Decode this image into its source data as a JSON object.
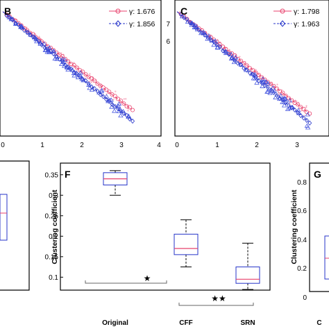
{
  "chart_data": [
    {
      "panel": "B",
      "type": "scatter",
      "letter": "B",
      "xlim": [
        0,
        4
      ],
      "ylim": [
        0,
        7.5
      ],
      "xticks": [
        "0",
        "1",
        "2",
        "3",
        "4"
      ],
      "legend_position": "top-right",
      "series": [
        {
          "name": "γ: 1.676",
          "color": "#e8416c",
          "marker": "circle",
          "fit_start": [
            0,
            7.0
          ],
          "fit_end": [
            3.3,
            1.5
          ]
        },
        {
          "name": "γ: 1.856",
          "color": "#2433c9",
          "marker": "diamond",
          "fit_start": [
            0,
            7.0
          ],
          "fit_end": [
            3.3,
            0.9
          ]
        }
      ]
    },
    {
      "panel": "C",
      "type": "scatter",
      "letter": "C",
      "xlim": [
        0,
        4
      ],
      "ylim": [
        0,
        7.5
      ],
      "yticks": [
        "6",
        "7"
      ],
      "xticks": [
        "0",
        "1",
        "2",
        "3"
      ],
      "legend_position": "top-right",
      "series": [
        {
          "name": "γ: 1.798",
          "color": "#e8416c",
          "marker": "circle",
          "fit_start": [
            0,
            7.0
          ],
          "fit_end": [
            3.3,
            1.3
          ]
        },
        {
          "name": "γ: 1.963",
          "color": "#2433c9",
          "marker": "diamond",
          "fit_start": [
            0,
            7.0
          ],
          "fit_end": [
            3.3,
            0.8
          ]
        }
      ]
    },
    {
      "panel": "F",
      "type": "box",
      "letter": "F",
      "ylabel": "Clustering coefficient",
      "ylim": [
        0.065,
        0.375
      ],
      "yticks": [
        "0.1",
        "0.15",
        "0.2",
        "0.25",
        "0.3",
        "0.35"
      ],
      "categories": [
        "Original",
        "CFF",
        "SRN"
      ],
      "boxes": [
        {
          "min": 0.3,
          "q1": 0.325,
          "median": 0.34,
          "q3": 0.355,
          "max": 0.36
        },
        {
          "min": 0.125,
          "q1": 0.155,
          "median": 0.17,
          "q3": 0.205,
          "max": 0.24
        },
        {
          "min": 0.07,
          "q1": 0.085,
          "median": 0.095,
          "q3": 0.125,
          "max": 0.183
        }
      ],
      "significance": [
        "★",
        "★★"
      ]
    },
    {
      "panel": "E",
      "type": "box",
      "partial": true
    },
    {
      "panel": "G",
      "type": "box",
      "letter": "G",
      "ylabel": "Clustering coefficient",
      "yticks": [
        "0.8",
        "0.6",
        "0.4",
        "0.2",
        "0"
      ],
      "categories": [
        "C"
      ]
    }
  ]
}
